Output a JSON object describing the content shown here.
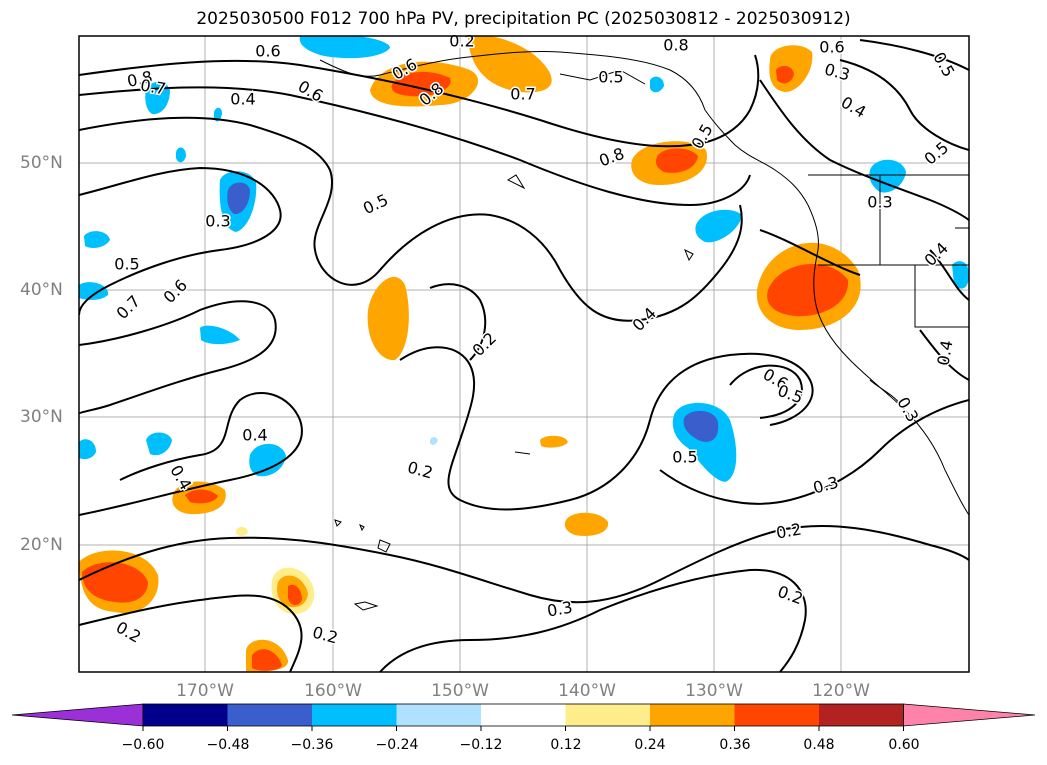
{
  "title": "2025030500 F012 700 hPa PV, precipitation PC (2025030812 - 2025030912)",
  "map": {
    "lat_labels": [
      "50°N",
      "40°N",
      "30°N",
      "20°N"
    ],
    "lon_labels": [
      "170°W",
      "160°W",
      "150°W",
      "140°W",
      "130°W",
      "120°W"
    ],
    "contour_labels": [
      "0.8",
      "0.7",
      "0.6",
      "0.6",
      "0.4",
      "0.8",
      "0.6",
      "0.7",
      "0.8",
      "0.5",
      "0.6",
      "0.2",
      "0.3",
      "0.5",
      "0.4",
      "0.5",
      "0.3",
      "0.3",
      "0.5",
      "0.8",
      "0.5",
      "0.5",
      "0.7",
      "0.6",
      "0.4",
      "0.2",
      "0.4",
      "0.4",
      "0.2",
      "0.4",
      "0.6",
      "0.5",
      "0.3",
      "0.5",
      "0.3",
      "0.2",
      "0.2",
      "0.3",
      "0.2",
      "0.2",
      "0.4"
    ]
  },
  "colorbar": {
    "ticks": [
      "−0.60",
      "−0.48",
      "−0.36",
      "−0.24",
      "−0.12",
      "0.12",
      "0.24",
      "0.36",
      "0.48",
      "0.60"
    ],
    "colors": [
      "#9b30d9",
      "#00008b",
      "#3a5fcd",
      "#00bfff",
      "#b0e2ff",
      "#ffffff",
      "#ffec8b",
      "#ffa500",
      "#ff4500",
      "#b22222",
      "#ff82ab"
    ]
  }
}
